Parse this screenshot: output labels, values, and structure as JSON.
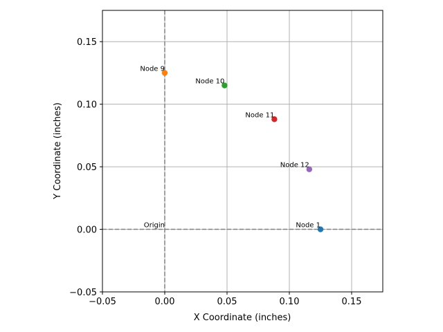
{
  "chart_data": {
    "type": "scatter",
    "title": "",
    "xlabel": "X Coordinate (inches)",
    "ylabel": "Y Coordinate (inches)",
    "xlim": [
      -0.05,
      0.175
    ],
    "ylim": [
      -0.05,
      0.175
    ],
    "xticks": [
      -0.05,
      0.0,
      0.05,
      0.1,
      0.15
    ],
    "xtick_labels": [
      "−0.05",
      "0.00",
      "0.05",
      "0.10",
      "0.15"
    ],
    "yticks": [
      -0.05,
      0.0,
      0.05,
      0.1,
      0.15
    ],
    "ytick_labels": [
      "−0.05",
      "0.00",
      "0.05",
      "0.10",
      "0.15"
    ],
    "grid": true,
    "reference_lines": {
      "x": 0,
      "y": 0,
      "style": "dashed",
      "color": "#808080"
    },
    "points": [
      {
        "label": "Node 1",
        "x": 0.125,
        "y": 0.0,
        "color": "#1f77b4"
      },
      {
        "label": "Node 9",
        "x": 0.0,
        "y": 0.125,
        "color": "#ff7f0e"
      },
      {
        "label": "Node 10",
        "x": 0.048,
        "y": 0.115,
        "color": "#2ca02c"
      },
      {
        "label": "Node 11",
        "x": 0.088,
        "y": 0.088,
        "color": "#d62728"
      },
      {
        "label": "Node 12",
        "x": 0.116,
        "y": 0.048,
        "color": "#9467bd"
      }
    ],
    "annotations": [
      {
        "text": "Origin",
        "x": 0.0,
        "y": 0.0
      }
    ]
  }
}
